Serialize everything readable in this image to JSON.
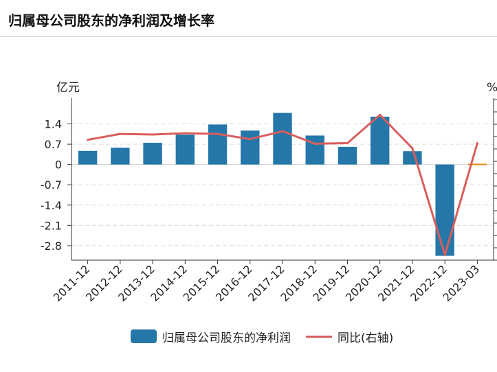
{
  "title": "归属母公司股东的净利润及增长率",
  "chart_data": {
    "type": "bar",
    "categories": [
      "2011-12",
      "2012-12",
      "2013-12",
      "2014-12",
      "2015-12",
      "2016-12",
      "2017-12",
      "2018-12",
      "2019-12",
      "2020-12",
      "2021-12",
      "2022-12",
      "2023-03"
    ],
    "series": [
      {
        "name": "归属母公司股东的净利润",
        "type": "bar",
        "color": "#2477a8",
        "values": [
          0.47,
          0.58,
          0.75,
          1.03,
          1.38,
          1.17,
          1.78,
          1.0,
          0.61,
          1.65,
          0.46,
          -3.15,
          0.02
        ]
      },
      {
        "name": "同比(右轴)",
        "type": "line",
        "color": "#d95d5c",
        "values": [
          35,
          44,
          43,
          45,
          44,
          36,
          48,
          29,
          30,
          73,
          22,
          -140,
          30
        ]
      }
    ],
    "y_left": {
      "unit_label": "亿元",
      "ticks": [
        "1.4",
        "0.7",
        "0",
        "-0.7",
        "-1.4",
        "-2.1",
        "-2.8"
      ],
      "tick_values": [
        1.4,
        0.7,
        0,
        -0.7,
        -1.4,
        -2.1,
        -2.8
      ],
      "range": [
        -3.3,
        2.1
      ]
    },
    "y_right": {
      "unit_label": "%",
      "range": [
        -148,
        90
      ]
    },
    "highlight_color": "#e8962e",
    "grid": true,
    "legend_position": "bottom"
  }
}
